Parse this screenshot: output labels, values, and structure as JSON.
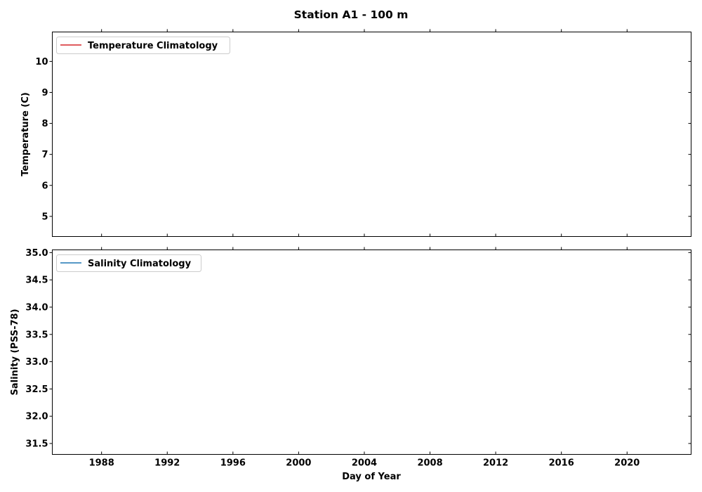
{
  "chart_data": [
    {
      "type": "line",
      "title": "Station A1 - 100 m",
      "ylabel": "Temperature (C)",
      "xlabel": "",
      "ylim": [
        4.35,
        10.95
      ],
      "yticks": [
        "5",
        "6",
        "7",
        "8",
        "9",
        "10"
      ],
      "xlim": [
        1985.0,
        2023.9
      ],
      "xticks": [
        "1988",
        "1992",
        "1996",
        "2000",
        "2004",
        "2008",
        "2012",
        "2016",
        "2020"
      ],
      "series": [
        {
          "name": "Temperature Climatology",
          "color": "#d62728",
          "x": [],
          "y": []
        }
      ],
      "legend": "top-left",
      "grid": false
    },
    {
      "type": "line",
      "title": "",
      "ylabel": "Salinity (PSS-78)",
      "xlabel": "Day of Year",
      "ylim": [
        31.3,
        35.05
      ],
      "yticks": [
        "31.5",
        "32.0",
        "32.5",
        "33.0",
        "33.5",
        "34.0",
        "34.5",
        "35.0"
      ],
      "xlim": [
        1985.0,
        2023.9
      ],
      "xticks": [
        "1988",
        "1992",
        "1996",
        "2000",
        "2004",
        "2008",
        "2012",
        "2016",
        "2020"
      ],
      "series": [
        {
          "name": "Salinity Climatology",
          "color": "#1f77b4",
          "x": [],
          "y": []
        }
      ],
      "legend": "top-left",
      "grid": false
    }
  ]
}
